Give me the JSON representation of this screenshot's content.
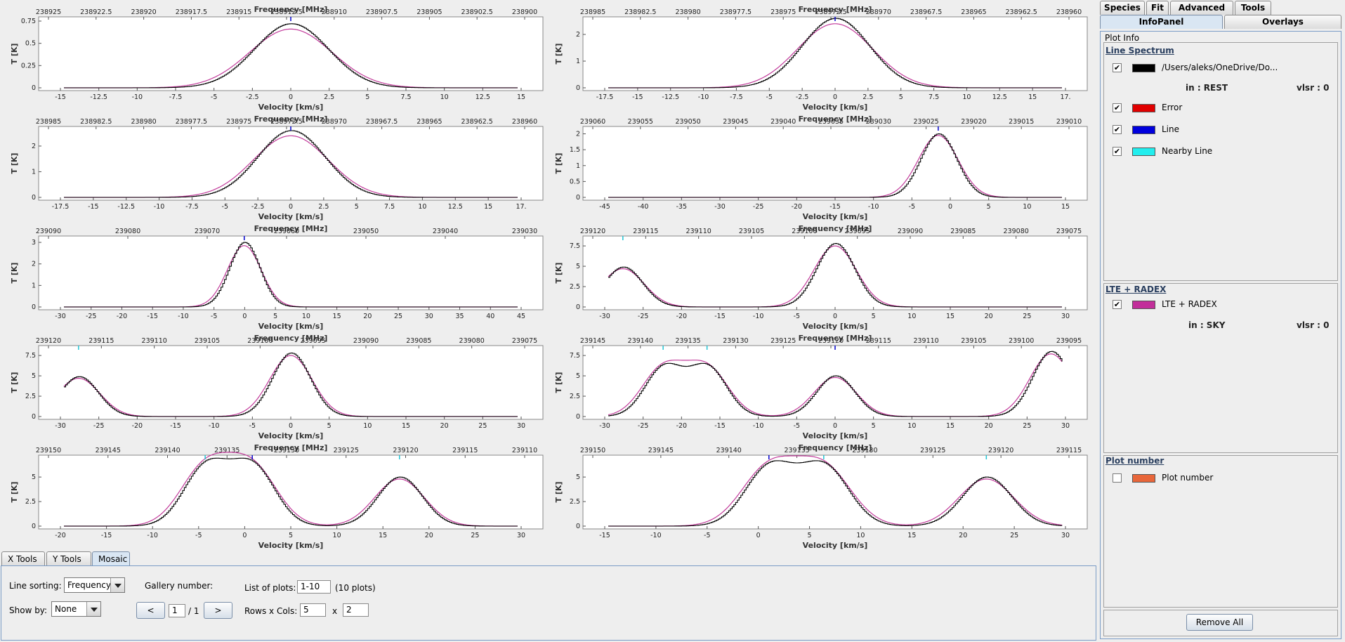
{
  "plots": [
    {
      "freq_ticks": [
        "238925",
        "238922.5",
        "238920",
        "238917.5",
        "238915",
        "238912.5",
        "238910",
        "238907.5",
        "238905",
        "238902.5",
        "238900"
      ],
      "vel_ticks": [
        "-15",
        "-12.5",
        "-10",
        "-7.5",
        "-5",
        "-2.5",
        "0",
        "2.5",
        "5",
        "7.5",
        "10",
        "12.5",
        "15"
      ],
      "y_ticks": [
        "0",
        "0.25",
        "0.5",
        "0.75"
      ],
      "ymax": 0.75,
      "xmin": -16,
      "xmax": 16,
      "obs": [
        {
          "c": 0,
          "a": 0.72,
          "w": 2.6
        }
      ],
      "model": [
        {
          "c": 0,
          "a": 0.66,
          "w": 2.9
        }
      ],
      "markers": [
        0
      ]
    },
    {
      "freq_ticks": [
        "238985",
        "238982.5",
        "238980",
        "238977.5",
        "238975",
        "238972.5",
        "238970",
        "238967.5",
        "238965",
        "238962.5",
        "238960"
      ],
      "vel_ticks": [
        "-17.5",
        "-15",
        "-12.5",
        "-10",
        "-7.5",
        "-5",
        "-2.5",
        "0",
        "2.5",
        "5",
        "7.5",
        "10",
        "12.5",
        "15",
        "17."
      ],
      "y_ticks": [
        "0",
        "1",
        "2"
      ],
      "ymax": 2.5,
      "xmin": -17.5,
      "xmax": 17.5,
      "obs": [
        {
          "c": 0,
          "a": 2.6,
          "w": 2.6
        }
      ],
      "model": [
        {
          "c": 0,
          "a": 2.4,
          "w": 2.9
        }
      ],
      "markers": [
        0
      ]
    },
    {
      "freq_ticks": [
        "238985",
        "238982.5",
        "238980",
        "238977.5",
        "238975",
        "238972.5",
        "238970",
        "238967.5",
        "238965",
        "238962.5",
        "238960"
      ],
      "vel_ticks": [
        "-17.5",
        "-15",
        "-12.5",
        "-10",
        "-7.5",
        "-5",
        "-2.5",
        "0",
        "2.5",
        "5",
        "7.5",
        "10",
        "12.5",
        "15",
        "17."
      ],
      "y_ticks": [
        "0",
        "1",
        "2"
      ],
      "ymax": 2.6,
      "xmin": -17.5,
      "xmax": 17.5,
      "obs": [
        {
          "c": 0,
          "a": 2.6,
          "w": 2.6
        }
      ],
      "model": [
        {
          "c": 0,
          "a": 2.4,
          "w": 2.9
        }
      ],
      "markers": [
        0
      ]
    },
    {
      "freq_ticks": [
        "239060",
        "239055",
        "239050",
        "239045",
        "239040",
        "239035",
        "239030",
        "239025",
        "239020",
        "239015",
        "239010"
      ],
      "vel_ticks": [
        "-45",
        "-40",
        "-35",
        "-30",
        "-25",
        "-20",
        "-15",
        "-10",
        "-5",
        "0",
        "5",
        "10",
        "15"
      ],
      "y_ticks": [
        "0",
        "0.5",
        "1",
        "1.5",
        "2"
      ],
      "ymax": 2.1,
      "xmin": -48,
      "xmax": 18,
      "obs": [
        {
          "c": 0,
          "a": 2.0,
          "w": 2.6
        }
      ],
      "model": [
        {
          "c": 0,
          "a": 1.95,
          "w": 2.9
        }
      ],
      "markers": [
        0
      ]
    },
    {
      "freq_ticks": [
        "239090",
        "239080",
        "239070",
        "239060",
        "239050",
        "239040",
        "239030"
      ],
      "vel_ticks": [
        "-30",
        "-25",
        "-20",
        "-15",
        "-10",
        "-5",
        "0",
        "5",
        "10",
        "15",
        "20",
        "25",
        "30",
        "35",
        "40",
        "45"
      ],
      "y_ticks": [
        "0",
        "1",
        "2",
        "3"
      ],
      "ymax": 3.1,
      "xmin": -31,
      "xmax": 47,
      "obs": [
        {
          "c": 0,
          "a": 3.0,
          "w": 2.6
        }
      ],
      "model": [
        {
          "c": 0,
          "a": 2.85,
          "w": 2.9
        }
      ],
      "markers": [
        0
      ]
    },
    {
      "freq_ticks": [
        "239120",
        "239115",
        "239110",
        "239105",
        "239100",
        "239095",
        "239090",
        "239085",
        "239080",
        "239075"
      ],
      "vel_ticks": [
        "-30",
        "-25",
        "-20",
        "-15",
        "-10",
        "-5",
        "0",
        "5",
        "10",
        "15",
        "20",
        "25",
        "30"
      ],
      "y_ticks": [
        "0",
        "2.5",
        "5",
        "7.5"
      ],
      "ymax": 8.2,
      "xmin": -31,
      "xmax": 31,
      "obs": [
        {
          "c": 0,
          "a": 7.8,
          "w": 2.6
        },
        {
          "c": -29,
          "a": 4.9,
          "w": 2.6
        }
      ],
      "model": [
        {
          "c": 0,
          "a": 7.5,
          "w": 2.9
        },
        {
          "c": -29,
          "a": 4.7,
          "w": 2.9
        }
      ],
      "markers": [
        -29
      ]
    },
    {
      "freq_ticks": [
        "239120",
        "239115",
        "239110",
        "239105",
        "239100",
        "239095",
        "239090",
        "239085",
        "239080",
        "239075"
      ],
      "vel_ticks": [
        "-30",
        "-25",
        "-20",
        "-15",
        "-10",
        "-5",
        "0",
        "5",
        "10",
        "15",
        "20",
        "25",
        "30"
      ],
      "y_ticks": [
        "0",
        "2.5",
        "5",
        "7.5"
      ],
      "ymax": 8.2,
      "xmin": -31,
      "xmax": 31,
      "obs": [
        {
          "c": 0,
          "a": 7.8,
          "w": 2.6
        },
        {
          "c": -29,
          "a": 4.9,
          "w": 2.6
        }
      ],
      "model": [
        {
          "c": 0,
          "a": 7.5,
          "w": 2.9
        },
        {
          "c": -29,
          "a": 4.7,
          "w": 2.9
        }
      ],
      "markers": [
        -29
      ]
    },
    {
      "freq_ticks": [
        "239145",
        "239140",
        "239135",
        "239130",
        "239125",
        "239120",
        "239115",
        "239110",
        "239105",
        "239100",
        "239095"
      ],
      "vel_ticks": [
        "-30",
        "-25",
        "-20",
        "-15",
        "-10",
        "-5",
        "0",
        "5",
        "10",
        "15",
        "20",
        "25",
        "30"
      ],
      "y_ticks": [
        "0",
        "2.5",
        "5",
        "7.5"
      ],
      "ymax": 8.2,
      "xmin": -31,
      "xmax": 31,
      "obs": [
        {
          "c": -23.5,
          "a": 6.0,
          "w": 2.6
        },
        {
          "c": -17.5,
          "a": 6.0,
          "w": 2.6
        },
        {
          "c": 0,
          "a": 5.0,
          "w": 2.6
        },
        {
          "c": 29.5,
          "a": 8.0,
          "w": 2.6
        }
      ],
      "model": [
        {
          "c": -23.5,
          "a": 5.9,
          "w": 2.9
        },
        {
          "c": -17.5,
          "a": 5.9,
          "w": 2.9
        },
        {
          "c": 0,
          "a": 4.8,
          "w": 2.9
        },
        {
          "c": 29.5,
          "a": 7.7,
          "w": 2.9
        }
      ],
      "markers": [
        -23.5,
        -17.5,
        0
      ]
    },
    {
      "freq_ticks": [
        "239150",
        "239145",
        "239140",
        "239135",
        "239130",
        "239125",
        "239120",
        "239115",
        "239110"
      ],
      "vel_ticks": [
        "-20",
        "-15",
        "-10",
        "-5",
        "0",
        "5",
        "10",
        "15",
        "20",
        "25",
        "30"
      ],
      "y_ticks": [
        "0",
        "2.5",
        "5"
      ],
      "ymax": 6.8,
      "xmin": -22,
      "xmax": 31,
      "obs": [
        {
          "c": -5.5,
          "a": 6.0,
          "w": 2.6
        },
        {
          "c": 0,
          "a": 6.0,
          "w": 2.6
        },
        {
          "c": 17.2,
          "a": 5.0,
          "w": 2.6
        }
      ],
      "model": [
        {
          "c": -5.5,
          "a": 5.9,
          "w": 2.9
        },
        {
          "c": 0,
          "a": 5.9,
          "w": 2.9
        },
        {
          "c": 17.2,
          "a": 4.8,
          "w": 2.9
        }
      ],
      "markers": [
        -5.5,
        0,
        17.2
      ]
    },
    {
      "freq_ticks": [
        "239150",
        "239145",
        "239140",
        "239135",
        "239130",
        "239125",
        "239120",
        "239115"
      ],
      "vel_ticks": [
        "-15",
        "-10",
        "-5",
        "0",
        "5",
        "10",
        "15",
        "20",
        "25",
        "30"
      ],
      "y_ticks": [
        "0",
        "2.5",
        "5"
      ],
      "ymax": 6.8,
      "xmin": -17,
      "xmax": 31,
      "obs": [
        {
          "c": 0,
          "a": 6.0,
          "w": 2.6
        },
        {
          "c": 5.8,
          "a": 6.0,
          "w": 2.6
        },
        {
          "c": 23,
          "a": 5.0,
          "w": 2.6
        }
      ],
      "model": [
        {
          "c": 0,
          "a": 5.9,
          "w": 2.9
        },
        {
          "c": 5.8,
          "a": 5.9,
          "w": 2.9
        },
        {
          "c": 23,
          "a": 4.8,
          "w": 2.9
        }
      ],
      "markers": [
        0,
        5.8,
        23
      ]
    }
  ],
  "axis_titles": {
    "top": "Frequency [MHz]",
    "bottom": "Velocity [km/s]",
    "left": "T [K]"
  },
  "colors": {
    "observed": "#000000",
    "model": "#c23b9b",
    "line_marker": "#0000cc",
    "nearby_marker": "#22c4d4"
  },
  "bottom_tabs": [
    "X Tools",
    "Y Tools",
    "Mosaic"
  ],
  "mosaic": {
    "line_sorting_label": "Line sorting:",
    "line_sorting_value": "Frequency",
    "show_by_label": "Show by:",
    "show_by_value": "None",
    "gallery_label": "Gallery number:",
    "prev_label": "<",
    "next_label": ">",
    "gallery_value": "1",
    "gallery_total": "/ 1",
    "list_label": "List of plots:",
    "list_value": "1-10",
    "list_count": "(10 plots)",
    "rowscols_label": "Rows x Cols:",
    "rows_value": "5",
    "x_label": "x",
    "cols_value": "2"
  },
  "right_tabs_top": [
    "Species",
    "Fit",
    "Advanced Fit",
    "Tools"
  ],
  "right_tabs_second": [
    "InfoPanel",
    "Overlays"
  ],
  "plot_info_title": "Plot Info",
  "groups": {
    "line_spectrum": {
      "title": "Line Spectrum",
      "entries": [
        {
          "label": "/Users/aleks/OneDrive/Do...",
          "color": "#000000",
          "checked": true
        },
        {
          "label": "Error",
          "color": "#e00000",
          "checked": true
        },
        {
          "label": "Line",
          "color": "#0000dd",
          "checked": true
        },
        {
          "label": "Nearby Line",
          "color": "#22eeee",
          "checked": true
        }
      ],
      "in_text": "in : REST",
      "vlsr_text": "vlsr : 0"
    },
    "lte_radex": {
      "title": "LTE + RADEX",
      "entries": [
        {
          "label": "LTE + RADEX",
          "color": "#c22f9a",
          "checked": true
        }
      ],
      "in_text": "in : SKY",
      "vlsr_text": "vlsr : 0"
    },
    "plot_number": {
      "title": "Plot number",
      "entries": [
        {
          "label": "Plot number",
          "color": "#e8663a",
          "checked": false
        }
      ]
    }
  },
  "remove_all_label": "Remove All"
}
